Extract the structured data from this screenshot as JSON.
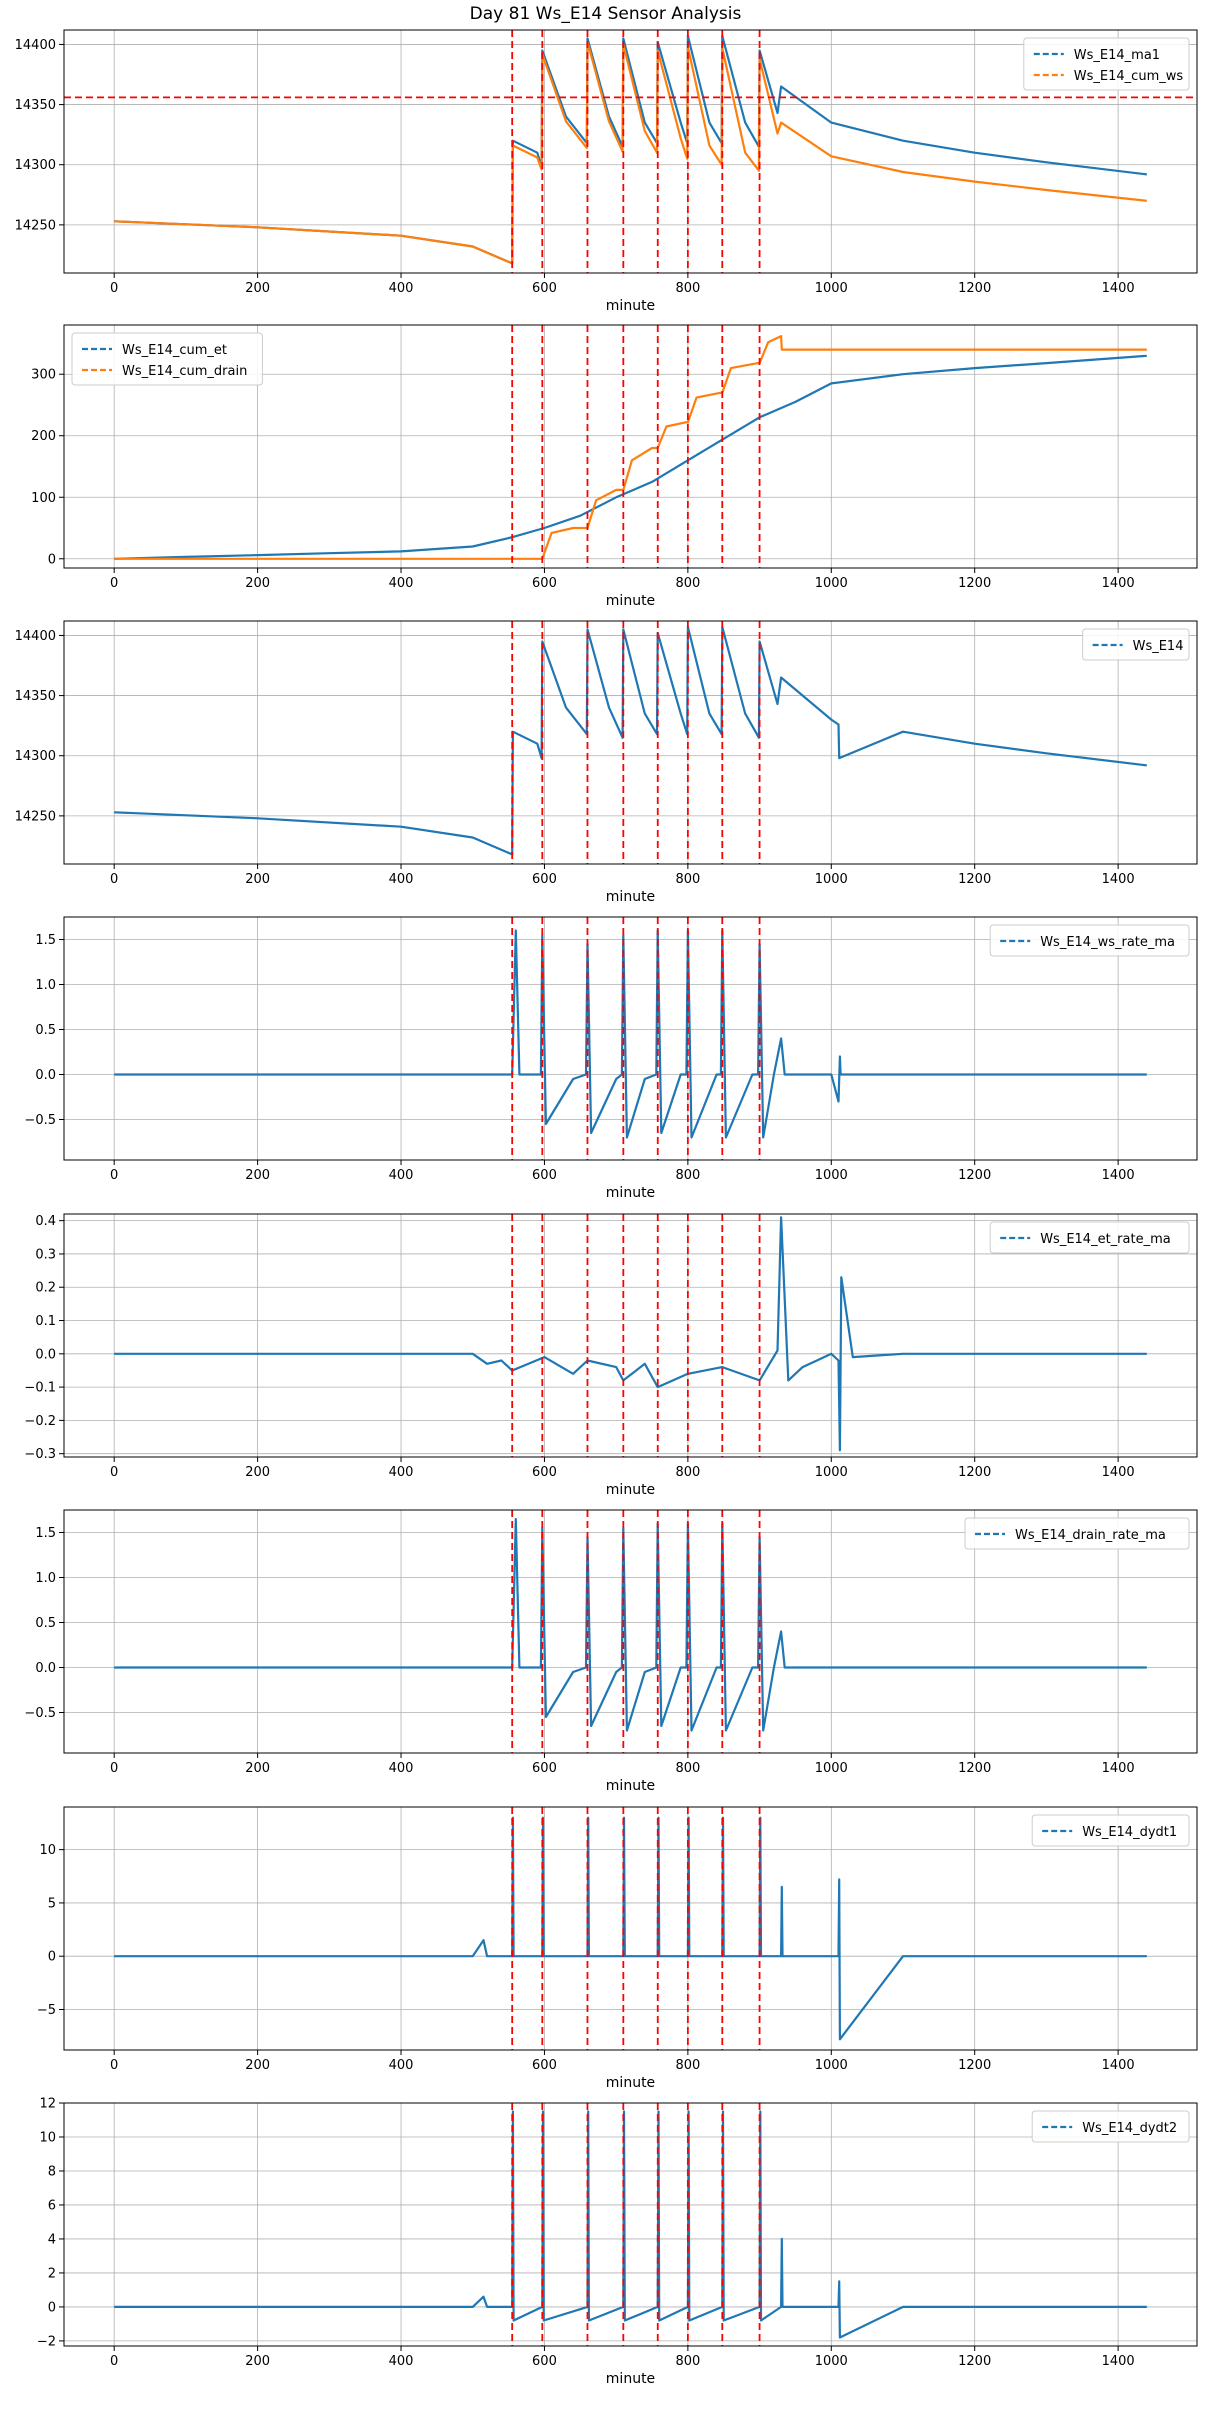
{
  "figure_title": "Day 81 Ws_E14 Sensor Analysis",
  "colors": {
    "blue": "#1f77b4",
    "orange": "#ff7f0e",
    "event": "#ff0000",
    "grid": "#b0b0b0"
  },
  "chart_data": [
    {
      "type": "line",
      "xlabel": "minute",
      "xlim": [
        -70,
        1510
      ],
      "ylim": [
        14210,
        14412
      ],
      "xticks": [
        0,
        200,
        400,
        600,
        800,
        1000,
        1200,
        1400
      ],
      "yticks": [
        14250,
        14300,
        14350,
        14400
      ],
      "legend": "top-right",
      "event_lines_x": [
        555,
        597,
        660,
        710,
        758,
        800,
        848,
        900
      ],
      "hline_y": 14356,
      "series": [
        {
          "name": "Ws_E14_ma1",
          "color": "#1f77b4",
          "x": [
            0,
            200,
            400,
            500,
            555,
            556,
            590,
            596,
            597,
            630,
            659,
            660,
            690,
            709,
            710,
            740,
            757,
            758,
            790,
            799,
            800,
            830,
            847,
            848,
            880,
            899,
            900,
            925,
            930,
            1000,
            1100,
            1200,
            1300,
            1440
          ],
          "y": [
            14253,
            14248,
            14241,
            14232,
            14218,
            14320,
            14310,
            14298,
            14395,
            14340,
            14318,
            14405,
            14340,
            14315,
            14405,
            14335,
            14318,
            14402,
            14335,
            14318,
            14407,
            14335,
            14318,
            14407,
            14335,
            14315,
            14395,
            14343,
            14365,
            14335,
            14320,
            14310,
            14302,
            14292
          ]
        },
        {
          "name": "Ws_E14_cum_ws",
          "color": "#ff7f0e",
          "x": [
            0,
            200,
            400,
            500,
            555,
            556,
            590,
            596,
            597,
            630,
            659,
            660,
            690,
            709,
            710,
            740,
            757,
            758,
            790,
            799,
            800,
            830,
            847,
            848,
            880,
            899,
            900,
            925,
            930,
            1000,
            1100,
            1200,
            1300,
            1440
          ],
          "y": [
            14253,
            14248,
            14241,
            14232,
            14218,
            14316,
            14306,
            14296,
            14392,
            14336,
            14314,
            14402,
            14336,
            14311,
            14400,
            14328,
            14310,
            14395,
            14322,
            14305,
            14398,
            14316,
            14300,
            14397,
            14310,
            14295,
            14388,
            14326,
            14335,
            14307,
            14294,
            14286,
            14279,
            14270
          ]
        }
      ]
    },
    {
      "type": "line",
      "xlabel": "minute",
      "xlim": [
        -70,
        1510
      ],
      "ylim": [
        -15,
        380
      ],
      "xticks": [
        0,
        200,
        400,
        600,
        800,
        1000,
        1200,
        1400
      ],
      "yticks": [
        0,
        100,
        200,
        300
      ],
      "legend": "top-left",
      "event_lines_x": [
        555,
        597,
        660,
        710,
        758,
        800,
        848,
        900
      ],
      "series": [
        {
          "name": "Ws_E14_cum_et",
          "color": "#1f77b4",
          "x": [
            0,
            100,
            200,
            300,
            400,
            500,
            555,
            600,
            650,
            700,
            750,
            800,
            850,
            900,
            950,
            1000,
            1100,
            1200,
            1300,
            1440
          ],
          "y": [
            0,
            3,
            6,
            9,
            12,
            20,
            35,
            50,
            70,
            100,
            125,
            160,
            195,
            230,
            255,
            285,
            300,
            310,
            318,
            330
          ]
        },
        {
          "name": "Ws_E14_cum_drain",
          "color": "#ff7f0e",
          "x": [
            0,
            555,
            575,
            597,
            610,
            640,
            660,
            672,
            700,
            710,
            722,
            750,
            758,
            770,
            798,
            800,
            812,
            846,
            848,
            860,
            898,
            900,
            912,
            930,
            931,
            1000,
            1100,
            1200,
            1300,
            1440
          ],
          "y": [
            0,
            0,
            0,
            0,
            42,
            50,
            50,
            95,
            112,
            112,
            160,
            180,
            180,
            215,
            222,
            222,
            262,
            270,
            270,
            310,
            318,
            318,
            352,
            362,
            340,
            340,
            340,
            340,
            340,
            340
          ]
        }
      ]
    },
    {
      "type": "line",
      "xlabel": "minute",
      "xlim": [
        -70,
        1510
      ],
      "ylim": [
        14210,
        14412
      ],
      "xticks": [
        0,
        200,
        400,
        600,
        800,
        1000,
        1200,
        1400
      ],
      "yticks": [
        14250,
        14300,
        14350,
        14400
      ],
      "legend": "top-right",
      "event_lines_x": [
        555,
        597,
        660,
        710,
        758,
        800,
        848,
        900
      ],
      "series": [
        {
          "name": "Ws_E14",
          "color": "#1f77b4",
          "x": [
            0,
            200,
            400,
            500,
            555,
            556,
            590,
            596,
            597,
            630,
            659,
            660,
            690,
            709,
            710,
            740,
            757,
            758,
            790,
            799,
            800,
            830,
            847,
            848,
            880,
            899,
            900,
            925,
            930,
            1000,
            1010,
            1011,
            1100,
            1200,
            1300,
            1440
          ],
          "y": [
            14253,
            14248,
            14241,
            14232,
            14218,
            14320,
            14310,
            14298,
            14395,
            14340,
            14318,
            14405,
            14340,
            14315,
            14405,
            14335,
            14318,
            14402,
            14335,
            14318,
            14407,
            14335,
            14318,
            14407,
            14335,
            14315,
            14395,
            14343,
            14365,
            14330,
            14326,
            14298,
            14320,
            14310,
            14302,
            14292
          ]
        }
      ]
    },
    {
      "type": "line",
      "xlabel": "minute",
      "xlim": [
        -70,
        1510
      ],
      "ylim": [
        -0.95,
        1.75
      ],
      "xticks": [
        0,
        200,
        400,
        600,
        800,
        1000,
        1200,
        1400
      ],
      "yticks": [
        -0.5,
        0.0,
        0.5,
        1.0,
        1.5
      ],
      "legend": "top-right",
      "event_lines_x": [
        555,
        597,
        660,
        710,
        758,
        800,
        848,
        900
      ],
      "series": [
        {
          "name": "Ws_E14_ws_rate_ma",
          "color": "#1f77b4",
          "x": [
            0,
            300,
            500,
            540,
            555,
            560,
            565,
            580,
            595,
            597,
            602,
            640,
            658,
            660,
            665,
            700,
            708,
            710,
            715,
            740,
            756,
            758,
            763,
            790,
            798,
            800,
            805,
            840,
            846,
            848,
            853,
            890,
            898,
            900,
            905,
            920,
            930,
            935,
            1000,
            1010,
            1012,
            1013,
            1020,
            1200,
            1440
          ],
          "y": [
            0,
            0,
            0,
            0,
            0,
            1.6,
            0,
            0,
            0,
            1.55,
            -0.55,
            -0.05,
            0,
            1.45,
            -0.65,
            -0.05,
            0,
            1.55,
            -0.7,
            -0.05,
            0,
            1.6,
            -0.65,
            0,
            0,
            1.6,
            -0.7,
            0,
            0,
            1.6,
            -0.7,
            0,
            0,
            1.45,
            -0.7,
            0,
            0.4,
            0,
            0,
            -0.3,
            0.2,
            0,
            0,
            0,
            0
          ]
        }
      ]
    },
    {
      "type": "line",
      "xlabel": "minute",
      "xlim": [
        -70,
        1510
      ],
      "ylim": [
        -0.31,
        0.42
      ],
      "xticks": [
        0,
        200,
        400,
        600,
        800,
        1000,
        1200,
        1400
      ],
      "yticks": [
        -0.3,
        -0.2,
        -0.1,
        0.0,
        0.1,
        0.2,
        0.3,
        0.4
      ],
      "legend": "top-right",
      "event_lines_x": [
        555,
        597,
        660,
        710,
        758,
        800,
        848,
        900
      ],
      "series": [
        {
          "name": "Ws_E14_et_rate_ma",
          "color": "#1f77b4",
          "x": [
            0,
            100,
            200,
            300,
            400,
            500,
            520,
            540,
            555,
            600,
            640,
            660,
            700,
            710,
            740,
            758,
            800,
            848,
            900,
            925,
            930,
            940,
            960,
            980,
            1000,
            1010,
            1012,
            1014,
            1030,
            1100,
            1200,
            1300,
            1440
          ],
          "y": [
            0,
            0,
            0,
            0,
            0,
            0,
            -0.03,
            -0.02,
            -0.05,
            -0.01,
            -0.06,
            -0.02,
            -0.04,
            -0.08,
            -0.03,
            -0.1,
            -0.06,
            -0.04,
            -0.08,
            0.01,
            0.41,
            -0.08,
            -0.04,
            -0.02,
            0,
            -0.02,
            -0.29,
            0.23,
            -0.01,
            0,
            0,
            0,
            0
          ]
        }
      ]
    },
    {
      "type": "line",
      "xlabel": "minute",
      "xlim": [
        -70,
        1510
      ],
      "ylim": [
        -0.95,
        1.75
      ],
      "xticks": [
        0,
        200,
        400,
        600,
        800,
        1000,
        1200,
        1400
      ],
      "yticks": [
        -0.5,
        0.0,
        0.5,
        1.0,
        1.5
      ],
      "legend": "top-right",
      "event_lines_x": [
        555,
        597,
        660,
        710,
        758,
        800,
        848,
        900
      ],
      "series": [
        {
          "name": "Ws_E14_drain_rate_ma",
          "color": "#1f77b4",
          "x": [
            0,
            300,
            555,
            560,
            565,
            595,
            597,
            602,
            640,
            658,
            660,
            665,
            700,
            708,
            710,
            715,
            740,
            756,
            758,
            763,
            790,
            798,
            800,
            805,
            840,
            846,
            848,
            853,
            890,
            898,
            900,
            905,
            920,
            930,
            935,
            1000,
            1200,
            1440
          ],
          "y": [
            0,
            0,
            0,
            1.65,
            0,
            0,
            1.55,
            -0.55,
            -0.05,
            0,
            1.45,
            -0.65,
            -0.05,
            0,
            1.55,
            -0.7,
            -0.05,
            0,
            1.6,
            -0.65,
            0,
            0,
            1.6,
            -0.7,
            0,
            0,
            1.6,
            -0.7,
            0,
            0,
            1.45,
            -0.7,
            0,
            0.4,
            0,
            0,
            0,
            0
          ]
        }
      ]
    },
    {
      "type": "line",
      "xlabel": "minute",
      "xlim": [
        -70,
        1510
      ],
      "ylim": [
        -8.8,
        14
      ],
      "xticks": [
        0,
        200,
        400,
        600,
        800,
        1000,
        1200,
        1400
      ],
      "yticks": [
        -5,
        0,
        5,
        10
      ],
      "legend": "top-right",
      "event_lines_x": [
        555,
        597,
        660,
        710,
        758,
        800,
        848,
        900
      ],
      "series": [
        {
          "name": "Ws_E14_dydt1",
          "color": "#1f77b4",
          "x": [
            0,
            100,
            200,
            300,
            400,
            500,
            515,
            520,
            555,
            556,
            557,
            597,
            598,
            599,
            660,
            661,
            662,
            710,
            711,
            712,
            758,
            759,
            760,
            800,
            801,
            802,
            848,
            849,
            850,
            900,
            901,
            902,
            930,
            931,
            932,
            1000,
            1010,
            1011,
            1012,
            1100,
            1300,
            1440
          ],
          "y": [
            0,
            0,
            0,
            0,
            0,
            0,
            1.5,
            0,
            0,
            13,
            0,
            0,
            13,
            0,
            0,
            13,
            0,
            0,
            13,
            0,
            0,
            13,
            0,
            0,
            13,
            0,
            0,
            13,
            0,
            0,
            13,
            0,
            0,
            6.5,
            0,
            0,
            0,
            7.2,
            -7.8,
            0,
            0,
            0
          ]
        }
      ]
    },
    {
      "type": "line",
      "xlabel": "minute",
      "xlim": [
        -70,
        1510
      ],
      "ylim": [
        -2.3,
        12
      ],
      "xticks": [
        0,
        200,
        400,
        600,
        800,
        1000,
        1200,
        1400
      ],
      "yticks": [
        -2,
        0,
        2,
        4,
        6,
        8,
        10,
        12
      ],
      "legend": "top-right",
      "event_lines_x": [
        555,
        597,
        660,
        710,
        758,
        800,
        848,
        900
      ],
      "series": [
        {
          "name": "Ws_E14_dydt2",
          "color": "#1f77b4",
          "x": [
            0,
            100,
            200,
            300,
            400,
            500,
            515,
            520,
            555,
            556,
            557,
            597,
            598,
            599,
            660,
            661,
            662,
            710,
            711,
            712,
            758,
            759,
            760,
            800,
            801,
            802,
            848,
            849,
            850,
            900,
            901,
            902,
            930,
            931,
            932,
            1000,
            1010,
            1011,
            1012,
            1100,
            1300,
            1440
          ],
          "y": [
            0,
            0,
            0,
            0,
            0,
            0,
            0.6,
            0,
            0,
            11.5,
            -0.8,
            0,
            11.5,
            -0.8,
            0,
            11.5,
            -0.8,
            0,
            11.5,
            -0.8,
            0,
            11.5,
            -0.8,
            0,
            11.5,
            -0.8,
            0,
            11.5,
            -0.8,
            0,
            11.5,
            -0.8,
            0,
            4,
            0,
            0,
            0,
            1.5,
            -1.8,
            0,
            0,
            0
          ]
        }
      ]
    }
  ]
}
